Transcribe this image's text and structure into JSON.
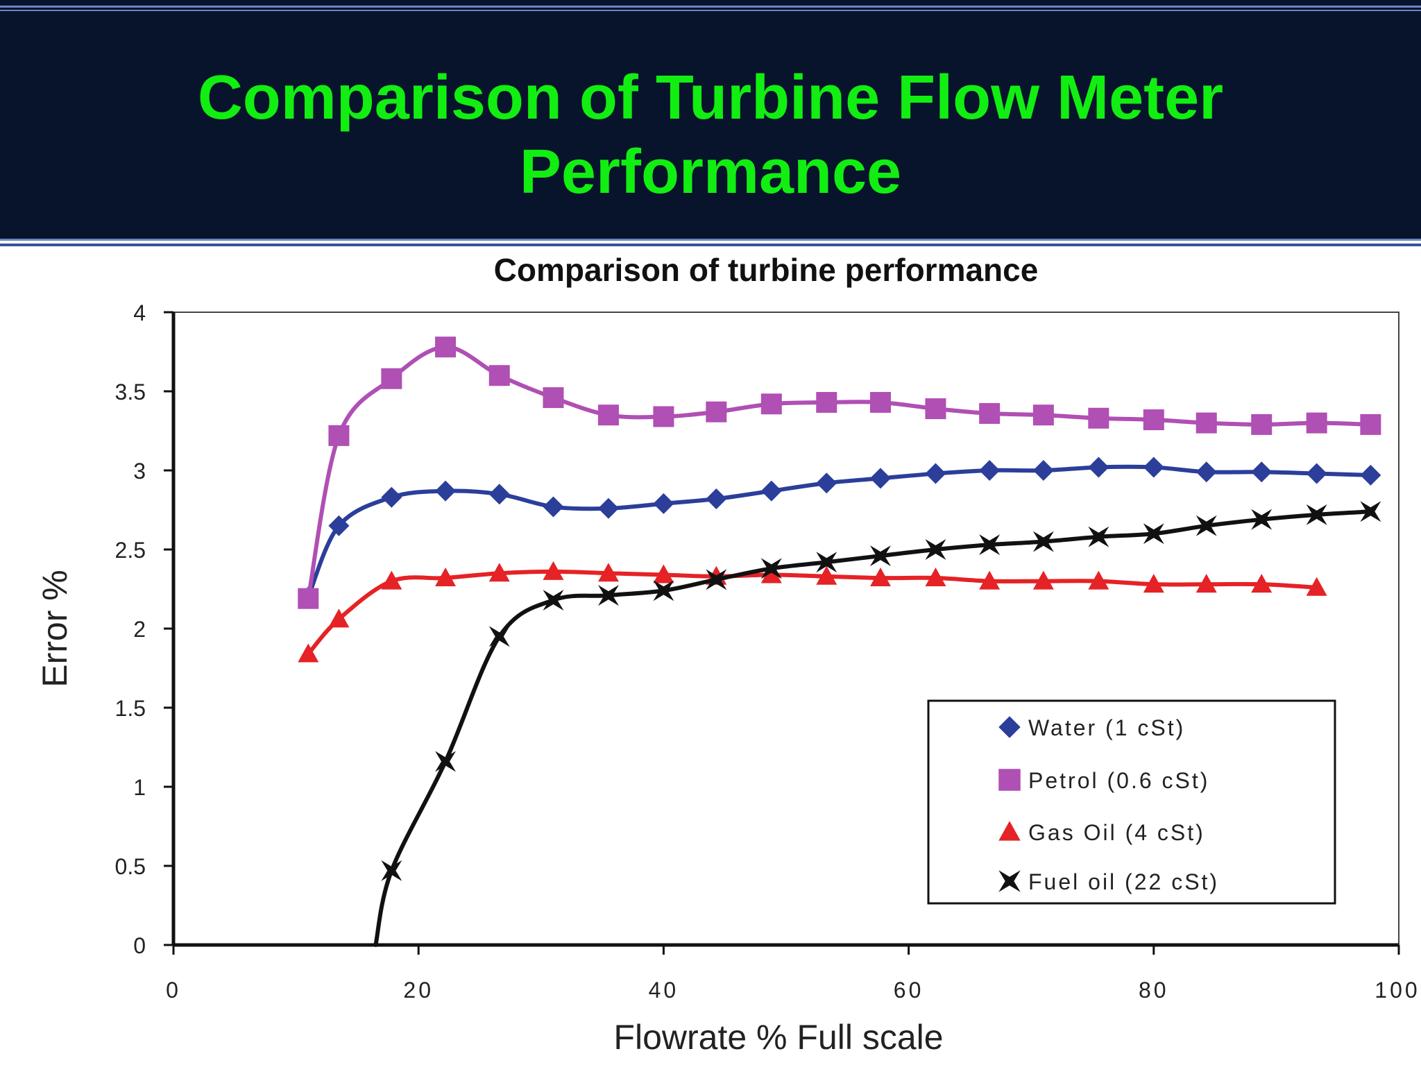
{
  "slide": {
    "title_line1": "Comparison of Turbine Flow Meter",
    "title_line2": "Performance",
    "header_color": "#07142c",
    "title_color": "#12ee12"
  },
  "chart_data": {
    "type": "line",
    "title": "Comparison of turbine performance",
    "xlabel": "Flowrate  % Full scale",
    "ylabel": "Error  %",
    "xlim": [
      0,
      100
    ],
    "ylim": [
      0,
      4
    ],
    "x_ticks": [
      "0",
      "20",
      "40",
      "60",
      "80",
      "100"
    ],
    "y_ticks": [
      "0",
      "0.5",
      "1",
      "1.5",
      "2",
      "2.5",
      "3",
      "3.5",
      "4"
    ],
    "grid": false,
    "legend_position": "bottom-right",
    "series": [
      {
        "name": "Water   (1 cSt)",
        "marker": "diamond",
        "color": "#2b3e9a",
        "points": [
          [
            11,
            2.2
          ],
          [
            13.5,
            2.65
          ],
          [
            17.8,
            2.83
          ],
          [
            22.2,
            2.87
          ],
          [
            26.6,
            2.85
          ],
          [
            31,
            2.77
          ],
          [
            35.5,
            2.76
          ],
          [
            40,
            2.79
          ],
          [
            44.3,
            2.82
          ],
          [
            48.8,
            2.87
          ],
          [
            53.3,
            2.92
          ],
          [
            57.7,
            2.95
          ],
          [
            62.2,
            2.98
          ],
          [
            66.6,
            3.0
          ],
          [
            71,
            3.0
          ],
          [
            75.5,
            3.02
          ],
          [
            80,
            3.02
          ],
          [
            84.3,
            2.99
          ],
          [
            88.8,
            2.99
          ],
          [
            93.3,
            2.98
          ],
          [
            97.7,
            2.97
          ]
        ]
      },
      {
        "name": "Petrol  (0.6 cSt)",
        "marker": "square",
        "color": "#b04fb4",
        "points": [
          [
            11,
            2.19
          ],
          [
            13.5,
            3.22
          ],
          [
            17.8,
            3.58
          ],
          [
            22.2,
            3.78
          ],
          [
            26.6,
            3.6
          ],
          [
            31,
            3.46
          ],
          [
            35.5,
            3.35
          ],
          [
            40,
            3.34
          ],
          [
            44.3,
            3.37
          ],
          [
            48.8,
            3.42
          ],
          [
            53.3,
            3.43
          ],
          [
            57.7,
            3.43
          ],
          [
            62.2,
            3.39
          ],
          [
            66.6,
            3.36
          ],
          [
            71,
            3.35
          ],
          [
            75.5,
            3.33
          ],
          [
            80,
            3.32
          ],
          [
            84.3,
            3.3
          ],
          [
            88.8,
            3.29
          ],
          [
            93.3,
            3.3
          ],
          [
            97.7,
            3.29
          ]
        ]
      },
      {
        "name": "Gas Oil  (4 cSt)",
        "marker": "triangle",
        "color": "#e52225",
        "points": [
          [
            11,
            1.84
          ],
          [
            13.5,
            2.06
          ],
          [
            17.8,
            2.3
          ],
          [
            22.2,
            2.32
          ],
          [
            26.6,
            2.35
          ],
          [
            31,
            2.36
          ],
          [
            35.5,
            2.35
          ],
          [
            40,
            2.34
          ],
          [
            44.3,
            2.33
          ],
          [
            48.8,
            2.34
          ],
          [
            53.3,
            2.33
          ],
          [
            57.7,
            2.32
          ],
          [
            62.2,
            2.32
          ],
          [
            66.6,
            2.3
          ],
          [
            71,
            2.3
          ],
          [
            75.5,
            2.3
          ],
          [
            80,
            2.28
          ],
          [
            84.3,
            2.28
          ],
          [
            88.8,
            2.28
          ],
          [
            93.3,
            2.26
          ]
        ]
      },
      {
        "name": "Fuel oil (22 cSt)",
        "marker": "star",
        "color": "#111111",
        "points": [
          [
            17.8,
            0.47
          ],
          [
            22.2,
            1.16
          ],
          [
            26.6,
            1.95
          ],
          [
            31,
            2.18
          ],
          [
            35.5,
            2.21
          ],
          [
            40,
            2.24
          ],
          [
            44.3,
            2.31
          ],
          [
            48.8,
            2.38
          ],
          [
            53.3,
            2.42
          ],
          [
            57.7,
            2.46
          ],
          [
            62.2,
            2.5
          ],
          [
            66.6,
            2.53
          ],
          [
            71,
            2.55
          ],
          [
            75.5,
            2.58
          ],
          [
            80,
            2.6
          ],
          [
            84.3,
            2.65
          ],
          [
            88.8,
            2.69
          ],
          [
            93.3,
            2.72
          ],
          [
            97.7,
            2.74
          ]
        ]
      }
    ]
  }
}
